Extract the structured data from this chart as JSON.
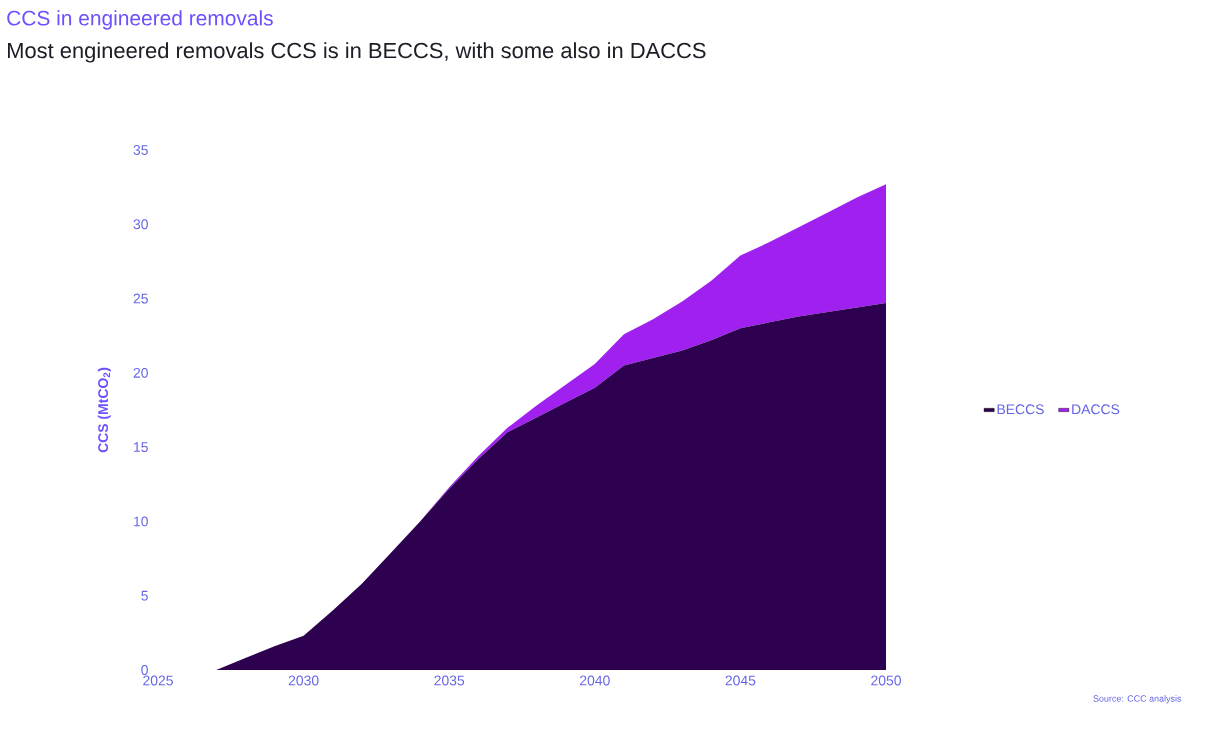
{
  "chart_data": {
    "type": "area",
    "title": "CCS in engineered removals",
    "subtitle": "Most engineered removals CCS is in BECCS, with some also in DACCS",
    "ylabel": "CCS (MtCO$_{2}$)",
    "x": [
      2025,
      2026,
      2027,
      2028,
      2029,
      2030,
      2031,
      2032,
      2033,
      2034,
      2035,
      2036,
      2037,
      2038,
      2039,
      2040,
      2041,
      2042,
      2043,
      2044,
      2045,
      2046,
      2047,
      2048,
      2049,
      2050
    ],
    "series": [
      {
        "name": "BECCS",
        "color": "#2d0050",
        "values": [
          0,
          0,
          0,
          0.8,
          1.6,
          2.3,
          4.0,
          5.8,
          7.9,
          10.0,
          12.2,
          14.2,
          16.0,
          17.0,
          18.0,
          19.0,
          20.5,
          21.0,
          21.5,
          22.2,
          23.0,
          23.4,
          23.8,
          24.1,
          24.4,
          24.7
        ]
      },
      {
        "name": "DACCS",
        "color": "#a020f0",
        "values": [
          0,
          0,
          0,
          0,
          0,
          0,
          0,
          0,
          0,
          0,
          0.1,
          0.2,
          0.3,
          0.8,
          1.2,
          1.6,
          2.1,
          2.6,
          3.3,
          4.0,
          4.9,
          5.4,
          6.0,
          6.7,
          7.4,
          8.0
        ]
      }
    ],
    "stacked": true,
    "xlim": [
      2025,
      2050
    ],
    "xticks": [
      2025,
      2030,
      2035,
      2040,
      2045,
      2050
    ],
    "ylim": [
      0,
      35
    ],
    "yticks": [
      0,
      5,
      10,
      15,
      20,
      25,
      30,
      35
    ],
    "legend": "right",
    "annotations": [
      "Source: CCC analysis"
    ]
  }
}
